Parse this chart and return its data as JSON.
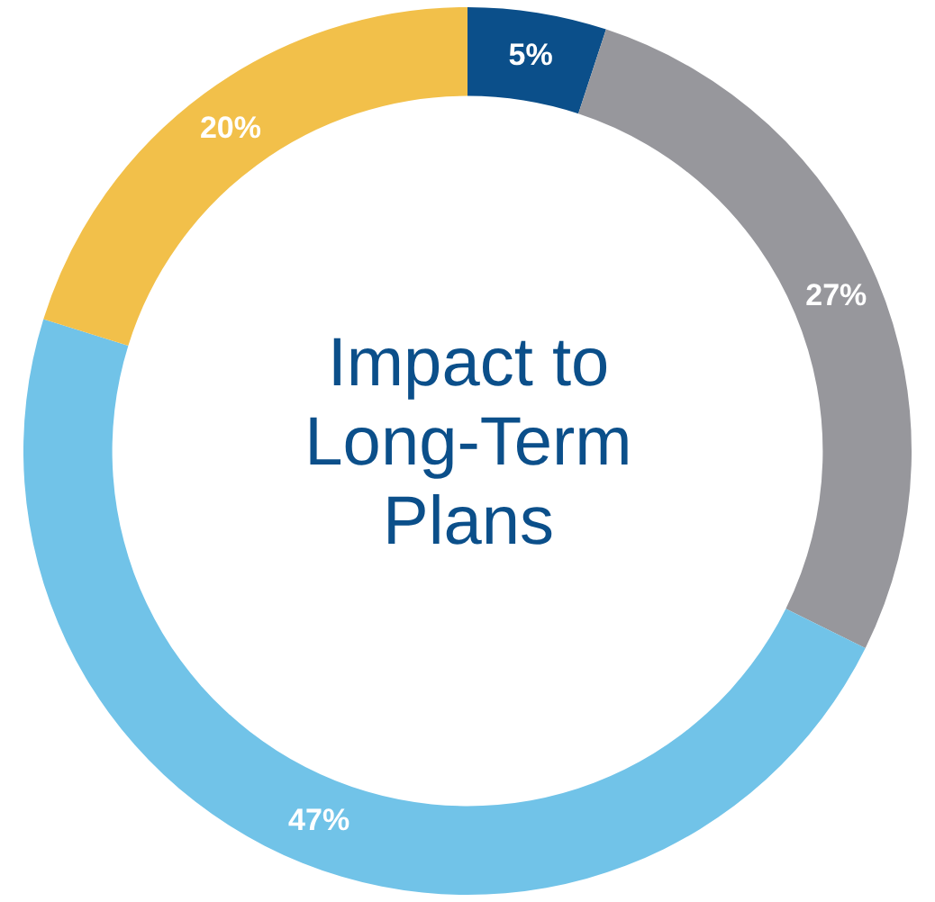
{
  "chart_data": {
    "type": "donut",
    "title": "Impact to Long-Term Plans",
    "categories": [
      null,
      null,
      null,
      null
    ],
    "values": [
      5,
      27,
      47,
      20
    ],
    "colors": [
      "#0b4f8a",
      "#97979c",
      "#71c3e8",
      "#f2c04a"
    ],
    "value_labels": [
      "5%",
      "27%",
      "47%",
      "20%"
    ]
  }
}
